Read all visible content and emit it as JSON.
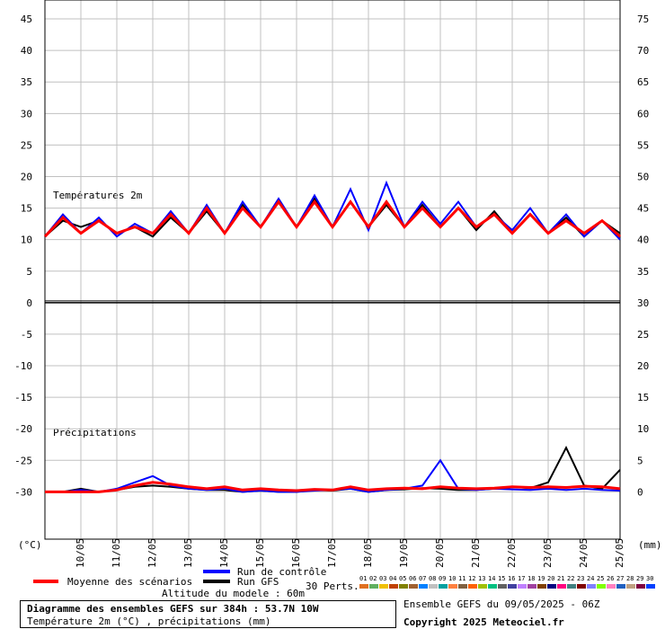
{
  "chart_data": {
    "type": "line",
    "y_unit_left": "(°C)",
    "y_unit_right": "(mm)",
    "panel_labels": [
      "Températures 2m",
      "Précipitations"
    ],
    "xlim": [
      0,
      384
    ],
    "x": [
      0,
      12,
      24,
      36,
      48,
      60,
      72,
      84,
      96,
      108,
      120,
      132,
      144,
      156,
      168,
      180,
      192,
      204,
      216,
      228,
      240,
      252,
      264,
      276,
      288,
      300,
      312,
      324,
      336,
      348,
      360,
      372,
      384
    ],
    "xticks": [
      {
        "value": 24,
        "label": "10/05"
      },
      {
        "value": 48,
        "label": "11/05"
      },
      {
        "value": 72,
        "label": "12/05"
      },
      {
        "value": 96,
        "label": "13/05"
      },
      {
        "value": 120,
        "label": "14/05"
      },
      {
        "value": 144,
        "label": "15/05"
      },
      {
        "value": 168,
        "label": "16/05"
      },
      {
        "value": 192,
        "label": "17/05"
      },
      {
        "value": 216,
        "label": "18/05"
      },
      {
        "value": 240,
        "label": "19/05"
      },
      {
        "value": 264,
        "label": "20/05"
      },
      {
        "value": 288,
        "label": "21/05"
      },
      {
        "value": 312,
        "label": "22/05"
      },
      {
        "value": 336,
        "label": "23/05"
      },
      {
        "value": 360,
        "label": "24/05"
      },
      {
        "value": 384,
        "label": "25/05"
      }
    ],
    "ylim": [
      -37.5,
      48
    ],
    "yticks": [
      45,
      40,
      35,
      30,
      25,
      20,
      15,
      10,
      5,
      0,
      -5,
      -10,
      -15,
      -20,
      -25,
      -30
    ],
    "y2lim": [
      -7.5,
      78
    ],
    "y2ticks": [
      75,
      70,
      65,
      60,
      55,
      50,
      45,
      40,
      35,
      30,
      25,
      20,
      15,
      10,
      5,
      0
    ],
    "grid": true,
    "series": [
      {
        "name": "Moyenne des scénarios",
        "color": "#ff0000",
        "values": [
          10.5,
          13.5,
          11,
          13,
          11,
          12,
          11,
          14,
          11,
          15,
          11,
          15,
          12,
          16,
          12,
          16,
          12,
          16,
          12,
          16,
          12,
          15,
          12,
          15,
          12,
          14,
          11,
          14,
          11,
          13,
          11,
          13,
          10.5
        ],
        "precip": [
          0,
          0,
          0,
          0,
          0.3,
          1,
          1.5,
          1.2,
          0.8,
          0.5,
          0.8,
          0.3,
          0.5,
          0.3,
          0.2,
          0.4,
          0.3,
          0.8,
          0.3,
          0.5,
          0.6,
          0.5,
          0.8,
          0.6,
          0.5,
          0.6,
          0.8,
          0.7,
          0.8,
          0.7,
          0.9,
          0.8,
          0.5
        ]
      },
      {
        "name": "Run de contrôle",
        "color": "#0000ff",
        "values": [
          10.5,
          14,
          11,
          13.5,
          10.5,
          12.5,
          11,
          14.5,
          11,
          15.5,
          11,
          16,
          12,
          16.5,
          12,
          17,
          12,
          18,
          11.5,
          19,
          12,
          16,
          12.5,
          16,
          12,
          14,
          11.5,
          15,
          11,
          14,
          10.5,
          13,
          10
        ],
        "precip": [
          0,
          0,
          0.3,
          0,
          0.5,
          1.5,
          2.5,
          1,
          0.5,
          0.3,
          0.5,
          0,
          0.2,
          0,
          0,
          0.2,
          0.3,
          0.5,
          0,
          0.3,
          0.5,
          1,
          5,
          0.5,
          0.3,
          0.5,
          0.4,
          0.3,
          0.5,
          0.3,
          0.5,
          0.3,
          0.2
        ]
      },
      {
        "name": "Run GFS",
        "color": "#000000",
        "values": [
          10.5,
          13,
          12,
          13,
          11,
          12,
          10.5,
          13.5,
          11,
          14.5,
          11,
          15.5,
          12,
          16,
          12,
          16.5,
          12,
          16,
          12,
          15.5,
          12,
          15.5,
          12,
          15,
          11.5,
          14.5,
          11,
          14,
          11,
          13.5,
          10.5,
          13,
          11
        ],
        "precip": [
          0,
          0,
          0.5,
          0,
          0.3,
          0.8,
          1,
          0.8,
          0.5,
          0.3,
          0.3,
          0,
          0.2,
          0,
          0,
          0.3,
          0.2,
          0.5,
          0,
          0.3,
          0.4,
          0.6,
          0.5,
          0.3,
          0.3,
          0.5,
          0.8,
          0.6,
          1.5,
          7,
          1,
          0.5,
          3.5
        ]
      }
    ],
    "perturbations": {
      "label": "30 Perts.",
      "items": [
        {
          "label": "01",
          "color": "#e07020"
        },
        {
          "label": "02",
          "color": "#60b060"
        },
        {
          "label": "03",
          "color": "#f0c000"
        },
        {
          "label": "04",
          "color": "#c04000"
        },
        {
          "label": "05",
          "color": "#808000"
        },
        {
          "label": "06",
          "color": "#a06030"
        },
        {
          "label": "07",
          "color": "#0080ff"
        },
        {
          "label": "08",
          "color": "#c0c0c0"
        },
        {
          "label": "09",
          "color": "#00a0a0"
        },
        {
          "label": "10",
          "color": "#ff8040"
        },
        {
          "label": "11",
          "color": "#806040"
        },
        {
          "label": "12",
          "color": "#ff6000"
        },
        {
          "label": "13",
          "color": "#a0c000"
        },
        {
          "label": "14",
          "color": "#00c080"
        },
        {
          "label": "15",
          "color": "#606060"
        },
        {
          "label": "16",
          "color": "#4040a0"
        },
        {
          "label": "17",
          "color": "#c080ff"
        },
        {
          "label": "18",
          "color": "#a040a0"
        },
        {
          "label": "19",
          "color": "#804000"
        },
        {
          "label": "20",
          "color": "#000080"
        },
        {
          "label": "21",
          "color": "#ff0080"
        },
        {
          "label": "22",
          "color": "#408080"
        },
        {
          "label": "23",
          "color": "#800000"
        },
        {
          "label": "24",
          "color": "#8080ff"
        },
        {
          "label": "25",
          "color": "#80ff00"
        },
        {
          "label": "26",
          "color": "#ff80c0"
        },
        {
          "label": "27",
          "color": "#2060c0"
        },
        {
          "label": "28",
          "color": "#c0a080"
        },
        {
          "label": "29",
          "color": "#800040"
        },
        {
          "label": "30",
          "color": "#0040ff"
        }
      ]
    },
    "altitude": "Altitude du modele : 60m",
    "footer_title": "Diagramme des ensembles GEFS sur 384h : 53.7N 10W",
    "footer_subtitle": "Température 2m (°C) , précipitations (mm)",
    "run_info": "Ensemble GEFS du 09/05/2025 - 06Z",
    "copyright": "Copyright 2025 Meteociel.fr"
  }
}
